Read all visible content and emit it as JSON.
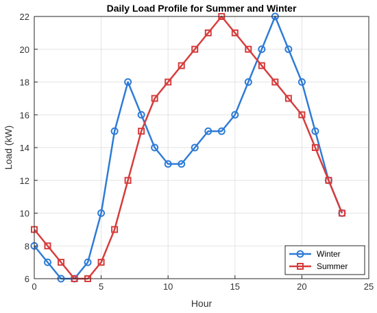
{
  "chart_data": {
    "type": "line",
    "title": "Daily Load Profile for Summer and Winter",
    "xlabel": "Hour",
    "ylabel": "Load (kW)",
    "xlim": [
      0,
      25
    ],
    "ylim": [
      6,
      22
    ],
    "xticks": [
      0,
      5,
      10,
      15,
      20,
      25
    ],
    "yticks": [
      6,
      8,
      10,
      12,
      14,
      16,
      18,
      20,
      22
    ],
    "grid": true,
    "legend_position": "bottom-right",
    "x": [
      0,
      1,
      2,
      3,
      4,
      5,
      6,
      7,
      8,
      9,
      10,
      11,
      12,
      13,
      14,
      15,
      16,
      17,
      18,
      19,
      20,
      21,
      22,
      23
    ],
    "series": [
      {
        "name": "Winter",
        "color": "#2e7bd6",
        "marker": "circle",
        "values": [
          8,
          7,
          6,
          6,
          7,
          10,
          15,
          18,
          16,
          14,
          13,
          13,
          14,
          15,
          15,
          16,
          18,
          20,
          22,
          20,
          18,
          15,
          12,
          10
        ]
      },
      {
        "name": "Summer",
        "color": "#d63c3c",
        "marker": "square",
        "values": [
          9,
          8,
          7,
          6,
          6,
          7,
          9,
          12,
          15,
          17,
          18,
          19,
          20,
          21,
          22,
          21,
          20,
          19,
          18,
          17,
          16,
          14,
          12,
          10
        ]
      }
    ]
  }
}
